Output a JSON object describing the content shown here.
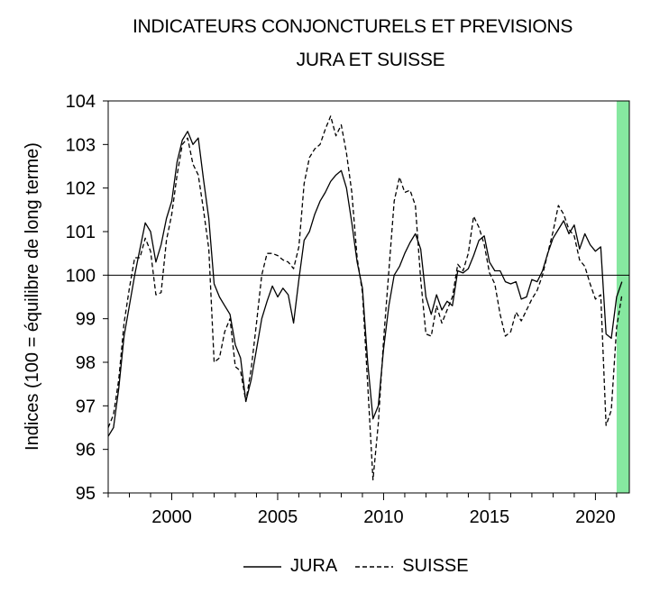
{
  "chart_data": {
    "type": "line",
    "title": "INDICATEURS CONJONCTURELS ET PREVISIONS",
    "subtitle": "JURA ET SUISSE",
    "ylabel": "Indices (100 = équilibre de long terme)",
    "xlabel": "",
    "xlim": [
      1997.0,
      2021.6
    ],
    "ylim": [
      95,
      104
    ],
    "x_ticks": [
      2000,
      2005,
      2010,
      2015,
      2020
    ],
    "y_ticks": [
      95,
      96,
      97,
      98,
      99,
      100,
      101,
      102,
      103,
      104
    ],
    "reference_line": 100,
    "forecast_band": {
      "from": 2021.0,
      "to": 2021.6,
      "color": "#86e8a0"
    },
    "legend_position": "bottom",
    "series": [
      {
        "name": "JURA",
        "style": "solid",
        "points": [
          [
            1997.0,
            96.3
          ],
          [
            1997.25,
            96.5
          ],
          [
            1997.5,
            97.4
          ],
          [
            1997.75,
            98.6
          ],
          [
            1998.0,
            99.3
          ],
          [
            1998.25,
            100.0
          ],
          [
            1998.5,
            100.6
          ],
          [
            1998.75,
            101.2
          ],
          [
            1999.0,
            101.0
          ],
          [
            1999.25,
            100.3
          ],
          [
            1999.5,
            100.7
          ],
          [
            1999.75,
            101.3
          ],
          [
            2000.0,
            101.7
          ],
          [
            2000.25,
            102.6
          ],
          [
            2000.5,
            103.1
          ],
          [
            2000.75,
            103.3
          ],
          [
            2001.0,
            103.0
          ],
          [
            2001.25,
            103.15
          ],
          [
            2001.5,
            102.2
          ],
          [
            2001.75,
            101.3
          ],
          [
            2002.0,
            99.8
          ],
          [
            2002.25,
            99.5
          ],
          [
            2002.5,
            99.3
          ],
          [
            2002.75,
            99.1
          ],
          [
            2003.0,
            98.4
          ],
          [
            2003.25,
            98.1
          ],
          [
            2003.5,
            97.1
          ],
          [
            2003.75,
            97.6
          ],
          [
            2004.0,
            98.3
          ],
          [
            2004.25,
            99.0
          ],
          [
            2004.5,
            99.4
          ],
          [
            2004.75,
            99.75
          ],
          [
            2005.0,
            99.5
          ],
          [
            2005.25,
            99.7
          ],
          [
            2005.5,
            99.55
          ],
          [
            2005.75,
            98.9
          ],
          [
            2006.0,
            99.9
          ],
          [
            2006.25,
            100.8
          ],
          [
            2006.5,
            101.0
          ],
          [
            2006.75,
            101.4
          ],
          [
            2007.0,
            101.7
          ],
          [
            2007.25,
            101.9
          ],
          [
            2007.5,
            102.15
          ],
          [
            2007.75,
            102.3
          ],
          [
            2008.0,
            102.4
          ],
          [
            2008.25,
            102.0
          ],
          [
            2008.5,
            101.2
          ],
          [
            2008.75,
            100.3
          ],
          [
            2009.0,
            99.7
          ],
          [
            2009.25,
            98.0
          ],
          [
            2009.5,
            96.7
          ],
          [
            2009.75,
            97.0
          ],
          [
            2010.0,
            98.3
          ],
          [
            2010.25,
            99.3
          ],
          [
            2010.5,
            100.0
          ],
          [
            2010.75,
            100.2
          ],
          [
            2011.0,
            100.5
          ],
          [
            2011.25,
            100.75
          ],
          [
            2011.5,
            100.95
          ],
          [
            2011.75,
            100.6
          ],
          [
            2012.0,
            99.5
          ],
          [
            2012.25,
            99.1
          ],
          [
            2012.5,
            99.55
          ],
          [
            2012.75,
            99.2
          ],
          [
            2013.0,
            99.4
          ],
          [
            2013.25,
            99.3
          ],
          [
            2013.5,
            100.1
          ],
          [
            2013.75,
            100.05
          ],
          [
            2014.0,
            100.15
          ],
          [
            2014.25,
            100.45
          ],
          [
            2014.5,
            100.8
          ],
          [
            2014.75,
            100.9
          ],
          [
            2015.0,
            100.3
          ],
          [
            2015.25,
            100.1
          ],
          [
            2015.5,
            100.1
          ],
          [
            2015.75,
            99.85
          ],
          [
            2016.0,
            99.8
          ],
          [
            2016.25,
            99.85
          ],
          [
            2016.5,
            99.45
          ],
          [
            2016.75,
            99.5
          ],
          [
            2017.0,
            99.9
          ],
          [
            2017.25,
            99.85
          ],
          [
            2017.5,
            100.1
          ],
          [
            2017.75,
            100.5
          ],
          [
            2018.0,
            100.85
          ],
          [
            2018.25,
            101.05
          ],
          [
            2018.5,
            101.25
          ],
          [
            2018.75,
            100.95
          ],
          [
            2019.0,
            101.15
          ],
          [
            2019.25,
            100.6
          ],
          [
            2019.5,
            100.95
          ],
          [
            2019.75,
            100.7
          ],
          [
            2020.0,
            100.55
          ],
          [
            2020.25,
            100.65
          ],
          [
            2020.5,
            98.65
          ],
          [
            2020.75,
            98.55
          ],
          [
            2021.0,
            99.5
          ],
          [
            2021.25,
            99.85
          ]
        ]
      },
      {
        "name": "SUISSE",
        "style": "dashed",
        "points": [
          [
            1997.0,
            96.5
          ],
          [
            1997.25,
            96.8
          ],
          [
            1997.5,
            97.6
          ],
          [
            1997.75,
            98.9
          ],
          [
            1998.0,
            99.7
          ],
          [
            1998.25,
            100.4
          ],
          [
            1998.5,
            100.4
          ],
          [
            1998.75,
            100.85
          ],
          [
            1999.0,
            100.55
          ],
          [
            1999.25,
            99.55
          ],
          [
            1999.5,
            99.6
          ],
          [
            1999.75,
            100.8
          ],
          [
            2000.0,
            101.4
          ],
          [
            2000.25,
            102.3
          ],
          [
            2000.5,
            103.0
          ],
          [
            2000.75,
            103.15
          ],
          [
            2001.0,
            102.55
          ],
          [
            2001.25,
            102.3
          ],
          [
            2001.5,
            101.5
          ],
          [
            2001.75,
            100.6
          ],
          [
            2002.0,
            98.0
          ],
          [
            2002.25,
            98.1
          ],
          [
            2002.5,
            98.7
          ],
          [
            2002.75,
            99.0
          ],
          [
            2003.0,
            97.9
          ],
          [
            2003.25,
            97.8
          ],
          [
            2003.5,
            97.1
          ],
          [
            2003.75,
            97.85
          ],
          [
            2004.0,
            98.9
          ],
          [
            2004.25,
            100.0
          ],
          [
            2004.5,
            100.5
          ],
          [
            2004.75,
            100.5
          ],
          [
            2005.0,
            100.45
          ],
          [
            2005.25,
            100.35
          ],
          [
            2005.5,
            100.3
          ],
          [
            2005.75,
            100.15
          ],
          [
            2006.0,
            100.65
          ],
          [
            2006.25,
            102.1
          ],
          [
            2006.5,
            102.7
          ],
          [
            2006.75,
            102.9
          ],
          [
            2007.0,
            103.0
          ],
          [
            2007.25,
            103.35
          ],
          [
            2007.5,
            103.65
          ],
          [
            2007.75,
            103.2
          ],
          [
            2008.0,
            103.45
          ],
          [
            2008.25,
            102.8
          ],
          [
            2008.5,
            101.9
          ],
          [
            2008.75,
            100.4
          ],
          [
            2009.0,
            99.6
          ],
          [
            2009.25,
            97.5
          ],
          [
            2009.5,
            95.3
          ],
          [
            2009.75,
            96.6
          ],
          [
            2010.0,
            98.5
          ],
          [
            2010.25,
            100.1
          ],
          [
            2010.5,
            101.7
          ],
          [
            2010.75,
            102.25
          ],
          [
            2011.0,
            101.9
          ],
          [
            2011.25,
            101.95
          ],
          [
            2011.5,
            101.6
          ],
          [
            2011.75,
            99.9
          ],
          [
            2012.0,
            98.65
          ],
          [
            2012.25,
            98.6
          ],
          [
            2012.5,
            99.3
          ],
          [
            2012.75,
            98.9
          ],
          [
            2013.0,
            99.2
          ],
          [
            2013.25,
            99.5
          ],
          [
            2013.5,
            100.25
          ],
          [
            2013.75,
            100.1
          ],
          [
            2014.0,
            100.5
          ],
          [
            2014.25,
            101.35
          ],
          [
            2014.5,
            101.1
          ],
          [
            2014.75,
            100.7
          ],
          [
            2015.0,
            100.05
          ],
          [
            2015.25,
            99.8
          ],
          [
            2015.5,
            99.1
          ],
          [
            2015.75,
            98.6
          ],
          [
            2016.0,
            98.7
          ],
          [
            2016.25,
            99.15
          ],
          [
            2016.5,
            98.95
          ],
          [
            2016.75,
            99.2
          ],
          [
            2017.0,
            99.45
          ],
          [
            2017.25,
            99.65
          ],
          [
            2017.5,
            100.0
          ],
          [
            2017.75,
            100.5
          ],
          [
            2018.0,
            101.0
          ],
          [
            2018.25,
            101.6
          ],
          [
            2018.5,
            101.4
          ],
          [
            2018.75,
            101.05
          ],
          [
            2019.0,
            100.9
          ],
          [
            2019.25,
            100.35
          ],
          [
            2019.5,
            100.2
          ],
          [
            2019.75,
            99.8
          ],
          [
            2020.0,
            99.45
          ],
          [
            2020.25,
            99.55
          ],
          [
            2020.5,
            96.55
          ],
          [
            2020.75,
            96.9
          ],
          [
            2021.0,
            98.8
          ],
          [
            2021.25,
            99.55
          ]
        ]
      }
    ]
  }
}
